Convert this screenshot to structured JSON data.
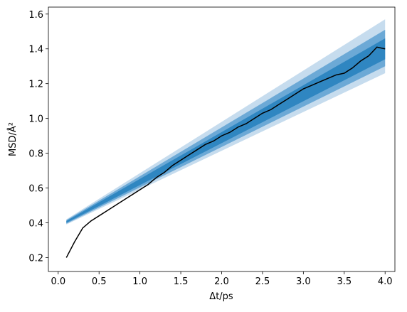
{
  "chart_data": {
    "type": "line",
    "xlabel": "Δt/ps",
    "ylabel": "MSD/Å²",
    "xlim": [
      -0.12,
      4.12
    ],
    "ylim": [
      0.12,
      1.64
    ],
    "xticks": [
      {
        "value": 0,
        "label": "0.0"
      },
      0.5,
      {
        "value": 1,
        "label": "1.0"
      },
      1.5,
      {
        "value": 2,
        "label": "2.0"
      },
      2.5,
      {
        "value": 3,
        "label": "3.0"
      },
      3.5,
      {
        "value": 4,
        "label": "4.0"
      }
    ],
    "yticks": [
      0.2,
      0.4,
      0.6,
      0.8,
      {
        "value": 1,
        "label": "1.0"
      },
      1.2,
      1.4,
      1.6
    ],
    "bands": [
      {
        "color": "#c6dcee",
        "x": [
          0.1,
          4.0
        ],
        "lower": [
          0.39,
          1.26
        ],
        "upper": [
          0.42,
          1.57
        ]
      },
      {
        "color": "#6ca9d6",
        "x": [
          0.1,
          4.0
        ],
        "lower": [
          0.395,
          1.3
        ],
        "upper": [
          0.415,
          1.51
        ]
      },
      {
        "color": "#2f86c1",
        "x": [
          0.1,
          4.0
        ],
        "lower": [
          0.4,
          1.34
        ],
        "upper": [
          0.41,
          1.46
        ]
      }
    ],
    "series": [
      {
        "color": "#000000",
        "x": [
          0.1,
          0.2,
          0.3,
          0.4,
          0.5,
          0.6,
          0.7,
          0.8,
          0.9,
          1.0,
          1.1,
          1.2,
          1.3,
          1.4,
          1.5,
          1.6,
          1.7,
          1.8,
          1.9,
          2.0,
          2.1,
          2.2,
          2.3,
          2.4,
          2.5,
          2.6,
          2.7,
          2.8,
          2.9,
          3.0,
          3.1,
          3.2,
          3.3,
          3.4,
          3.5,
          3.6,
          3.7,
          3.8,
          3.9,
          4.0
        ],
        "values": [
          0.2,
          0.29,
          0.37,
          0.41,
          0.44,
          0.47,
          0.5,
          0.53,
          0.56,
          0.59,
          0.62,
          0.66,
          0.69,
          0.73,
          0.76,
          0.79,
          0.82,
          0.85,
          0.87,
          0.9,
          0.92,
          0.95,
          0.97,
          1.0,
          1.03,
          1.05,
          1.08,
          1.11,
          1.14,
          1.17,
          1.19,
          1.21,
          1.23,
          1.25,
          1.26,
          1.29,
          1.33,
          1.36,
          1.41,
          1.4
        ]
      }
    ]
  }
}
